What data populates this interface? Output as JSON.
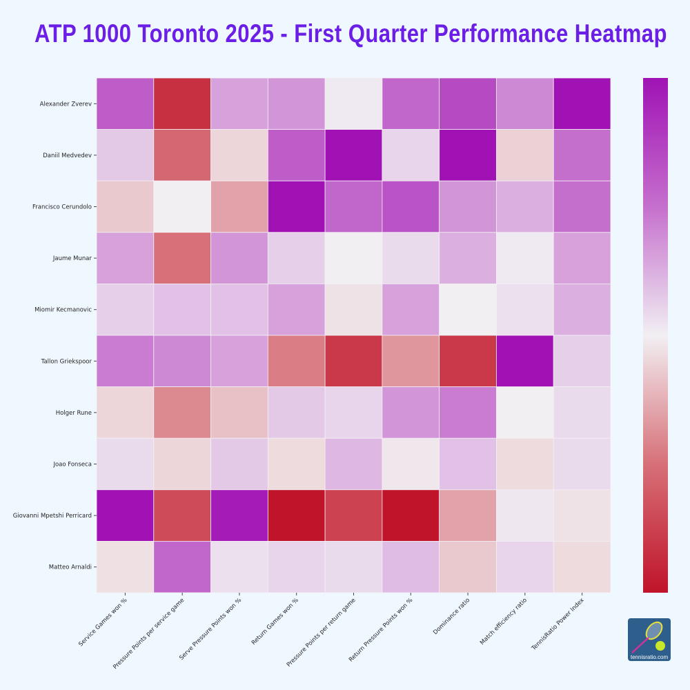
{
  "chart_data": {
    "type": "heatmap",
    "title": "ATP 1000 Toronto 2025 - First Quarter Performance Heatmap",
    "xlabel": "",
    "ylabel": "",
    "columns": [
      "Service Games won %",
      "Pressure Points per service game",
      "Serve Pressure Points won %",
      "Return Games won %",
      "Pressure Points per return game",
      "Return Pressure Points won %",
      "Dominance ratio",
      "Match efficiency ratio",
      "TennisRatio Power Index"
    ],
    "rows": [
      "Alexander Zverev",
      "Daniil Medvedev",
      "Francisco Cerundolo",
      "Jaume Munar",
      "Miomir Kecmanovic",
      "Tallon Griekspoor",
      "Holger Rune",
      "Joao Fonseca",
      "Giovanni Mpetshi Perricard",
      "Matteo Arnaldi"
    ],
    "value_range": [
      -1,
      1
    ],
    "values": [
      [
        0.6,
        -0.85,
        0.3,
        0.35,
        0.02,
        0.55,
        0.7,
        0.4,
        1.0
      ],
      [
        0.15,
        -0.55,
        -0.1,
        0.6,
        1.0,
        0.1,
        1.0,
        -0.12,
        0.5
      ],
      [
        -0.15,
        0.0,
        -0.3,
        1.0,
        0.55,
        0.65,
        0.35,
        0.25,
        0.5
      ],
      [
        0.3,
        -0.5,
        0.35,
        0.12,
        0.0,
        0.08,
        0.25,
        0.02,
        0.3
      ],
      [
        0.12,
        0.18,
        0.18,
        0.3,
        -0.05,
        0.3,
        0.0,
        0.06,
        0.25
      ],
      [
        0.45,
        0.4,
        0.3,
        -0.45,
        -0.8,
        -0.35,
        -0.8,
        1.0,
        0.12
      ],
      [
        -0.1,
        -0.4,
        -0.18,
        0.15,
        0.1,
        0.35,
        0.45,
        0.0,
        0.08
      ],
      [
        0.08,
        -0.1,
        0.15,
        -0.08,
        0.22,
        -0.03,
        0.18,
        -0.08,
        0.08
      ],
      [
        1.0,
        -0.7,
        0.95,
        -1.0,
        -0.75,
        -1.0,
        -0.3,
        0.03,
        -0.05
      ],
      [
        -0.06,
        0.55,
        0.06,
        0.1,
        0.08,
        0.2,
        -0.15,
        0.1,
        -0.08
      ]
    ],
    "colorscale": [
      "#c0142a",
      "#d77078",
      "#f1eff2",
      "#c56fcd",
      "#a012b4"
    ],
    "colorbar": "right",
    "grid": false
  },
  "logo_text": "tennisratio.com",
  "colors": {
    "title": "#6b1ee6",
    "background": "#f0f8ff"
  }
}
